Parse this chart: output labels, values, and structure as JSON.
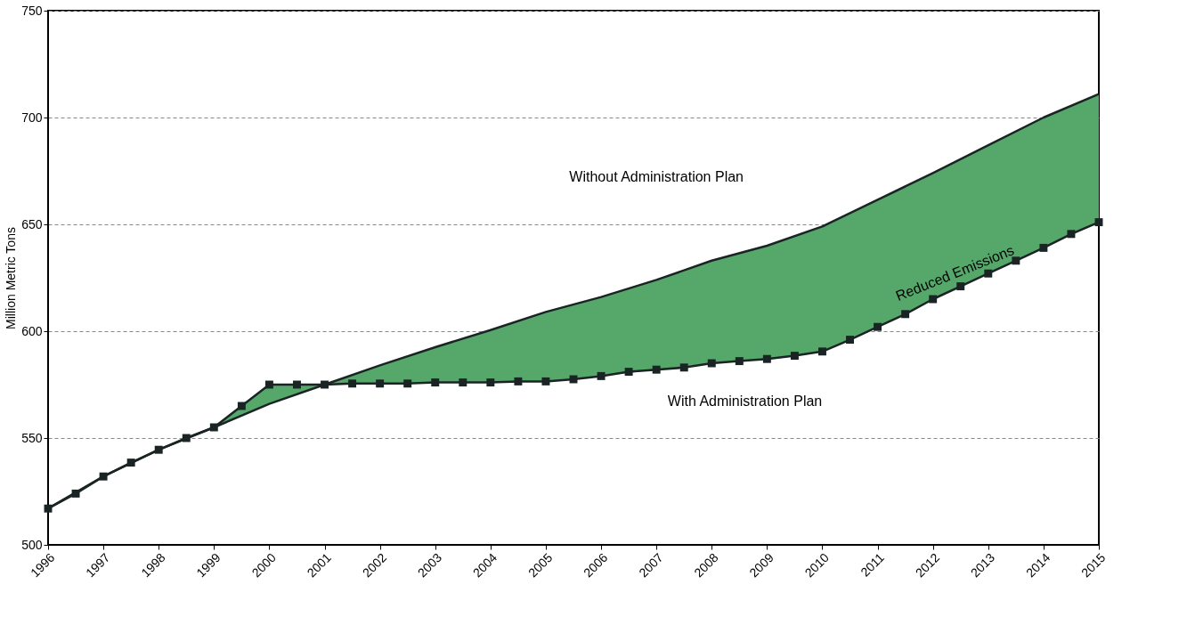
{
  "chart_data": {
    "type": "line",
    "ylabel": "Million Metric Tons",
    "xlim": [
      1996,
      2015
    ],
    "xticks": [
      1996,
      1997,
      1998,
      1999,
      2000,
      2001,
      2002,
      2003,
      2004,
      2005,
      2006,
      2007,
      2008,
      2009,
      2010,
      2011,
      2012,
      2013,
      2014,
      2015
    ],
    "ylim": [
      500,
      750
    ],
    "yticks": [
      500,
      550,
      600,
      650,
      700,
      750
    ],
    "grid": "y",
    "line_style": "solid",
    "series": [
      {
        "type": "line",
        "color": "#1a2424",
        "marker": "none",
        "x": [
          1996,
          1997,
          1998,
          1999,
          2000,
          2001,
          2002,
          2003,
          2004,
          2005,
          2006,
          2007,
          2008,
          2009,
          2010,
          2011,
          2012,
          2013,
          2014,
          2015
        ],
        "values": [
          517,
          532,
          544.5,
          555,
          566,
          575,
          584,
          592.5,
          600.5,
          609,
          616,
          624,
          633,
          640,
          649,
          661.5,
          674,
          687,
          700,
          711
        ],
        "lower": [
          517,
          532,
          544.5,
          555,
          575,
          575,
          575.5,
          576,
          576,
          576.5,
          579,
          582,
          585,
          587,
          590.5,
          602,
          615,
          627,
          639,
          651
        ],
        "upper": [
          517,
          532,
          544.5,
          555,
          566,
          575,
          584,
          592.5,
          600.5,
          609,
          616,
          624,
          633,
          640,
          649,
          661.5,
          674,
          687,
          700,
          711
        ]
      },
      {
        "color": "#1a2424",
        "marker": "square",
        "x": [
          1996,
          1996.5,
          1997,
          1997.5,
          1998,
          1998.5,
          1999,
          1999.5,
          2000,
          2000.5,
          2001,
          2001.5,
          2002,
          2002.5,
          2003,
          2003.5,
          2004,
          2004.5,
          2005,
          2005.5,
          2006,
          2006.5,
          2007,
          2007.5,
          2008,
          2008.5,
          2009,
          2009.5,
          2010,
          2010.5,
          2011,
          2011.5,
          2012,
          2012.5,
          2013,
          2013.5,
          2014,
          2014.5,
          2015
        ],
        "values": [
          517,
          524,
          532,
          538.5,
          544.5,
          550,
          555,
          565,
          575,
          575,
          575,
          575.5,
          575.5,
          575.5,
          576,
          576,
          576,
          576.5,
          576.5,
          577.5,
          579,
          581,
          582,
          583,
          585,
          586,
          587,
          588.5,
          590.5,
          596,
          602,
          608,
          615,
          621,
          627,
          633,
          639,
          645.5,
          651
        ]
      }
    ],
    "annotations": [
      "Without Administration Plan",
      "Reduced Emissions",
      "With Administration Plan"
    ]
  }
}
